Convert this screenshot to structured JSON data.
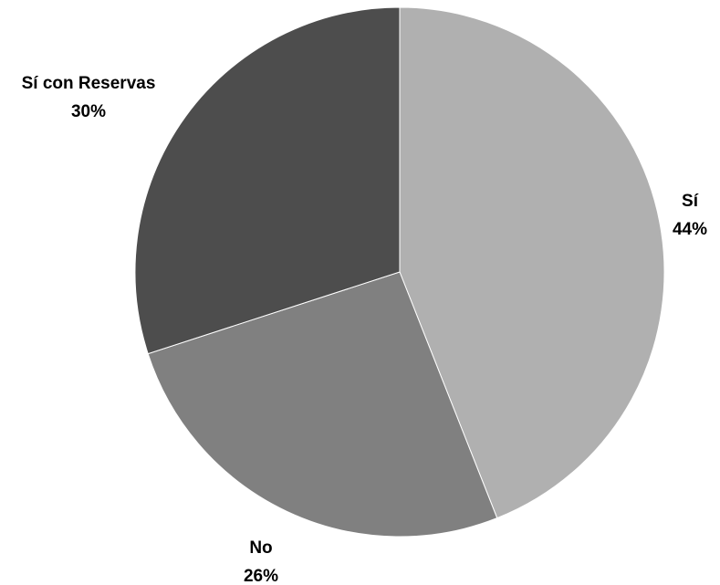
{
  "chart_data": {
    "type": "pie",
    "title": "",
    "slices": [
      {
        "label": "Sí",
        "value": 44,
        "percent_label": "44%",
        "color": "#b0b0b0"
      },
      {
        "label": "No",
        "value": 26,
        "percent_label": "26%",
        "color": "#808080"
      },
      {
        "label": "Sí con Reservas",
        "value": 30,
        "percent_label": "30%",
        "color": "#4d4d4d"
      }
    ],
    "start_angle": "12 o'clock",
    "direction": "clockwise",
    "legend": "none",
    "data_labels": "outside, category name and percentage"
  }
}
